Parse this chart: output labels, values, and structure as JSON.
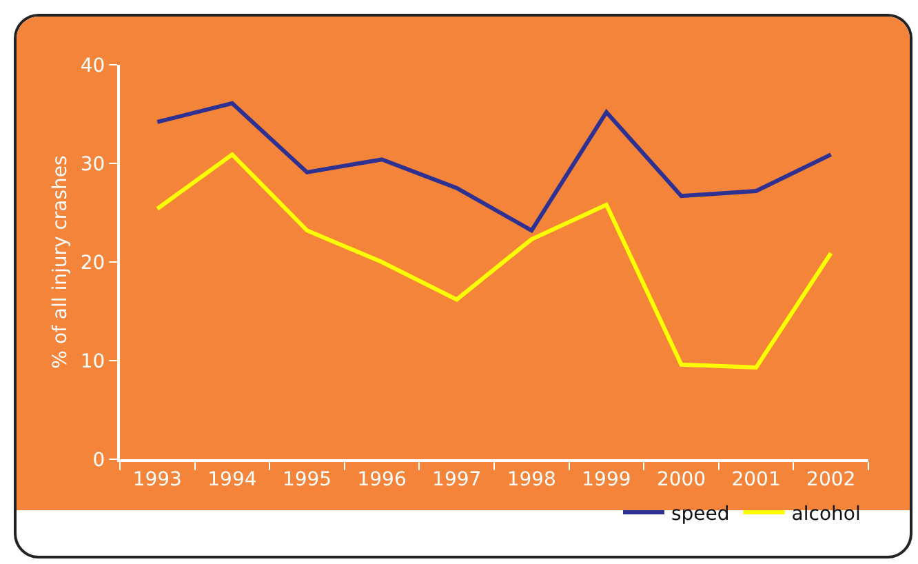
{
  "chart_data": {
    "type": "line",
    "ylabel": "% of all injury crashes",
    "categories": [
      "1993",
      "1994",
      "1995",
      "1996",
      "1997",
      "1998",
      "1999",
      "2000",
      "2001",
      "2002"
    ],
    "series": [
      {
        "name": "speed",
        "color": "#2e3192",
        "values": [
          34.2,
          36.1,
          29.1,
          30.4,
          27.5,
          23.2,
          35.2,
          26.7,
          27.2,
          30.9
        ]
      },
      {
        "name": "alcohol",
        "color": "#ffff00",
        "values": [
          25.4,
          30.9,
          23.2,
          20.0,
          16.2,
          22.3,
          25.8,
          9.6,
          9.3,
          20.9
        ]
      }
    ],
    "ylim": [
      0,
      40
    ],
    "yticks": [
      0,
      10,
      20,
      30,
      40
    ],
    "grid": false,
    "legend": "bottom right",
    "marker": "none",
    "line_style": "solid"
  }
}
